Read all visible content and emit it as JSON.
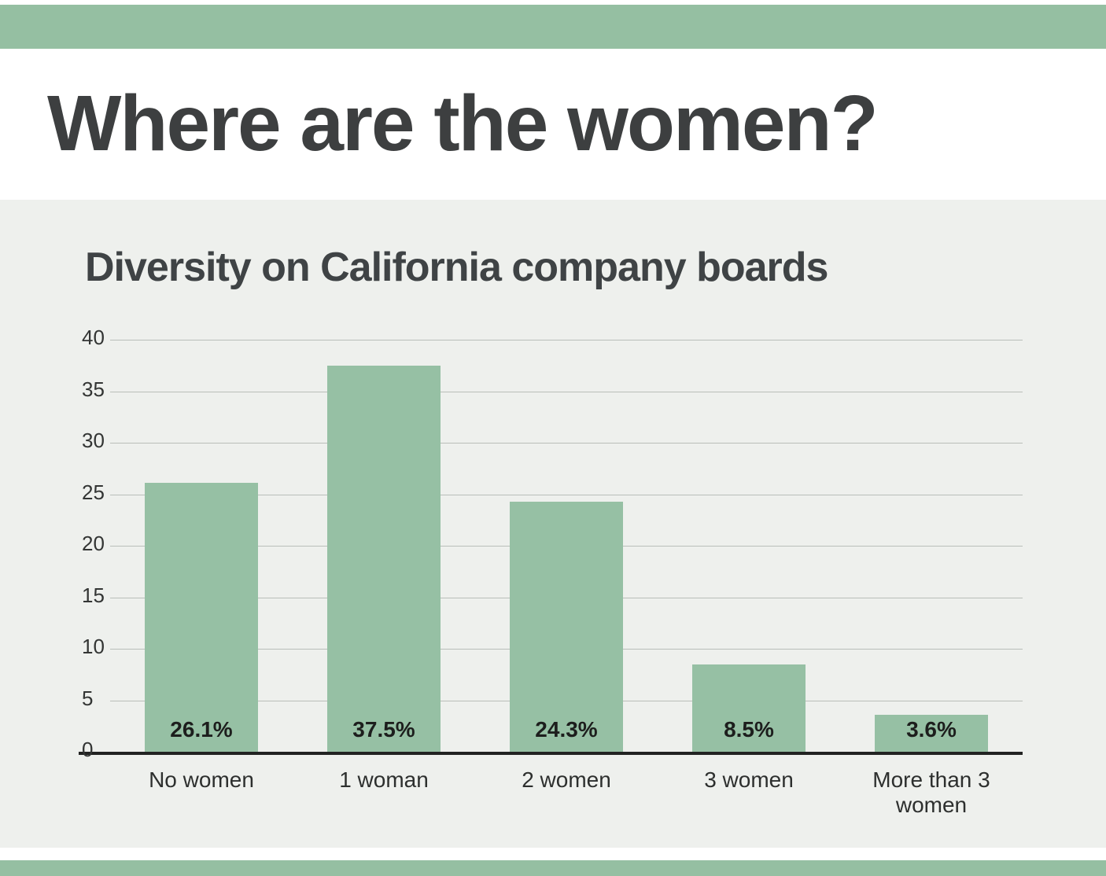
{
  "header": {
    "title": "Where are the women?"
  },
  "colors": {
    "banner_green": "#95bfa2",
    "bar_green": "#96c0a4",
    "section_background": "#eef0ed",
    "title_text": "#3d3f40"
  },
  "chart_data": {
    "type": "bar",
    "title": "Diversity on California company boards",
    "categories": [
      "No women",
      "1 woman",
      "2 women",
      "3 women",
      "More than 3 women"
    ],
    "values": [
      26.1,
      37.5,
      24.3,
      8.5,
      3.6
    ],
    "value_labels": [
      "26.1%",
      "37.5%",
      "24.3%",
      "8.5%",
      "3.6%"
    ],
    "xlabel": "",
    "ylabel": "",
    "ylim": [
      0,
      40
    ],
    "yticks": [
      0,
      5,
      10,
      15,
      20,
      25,
      30,
      35,
      40
    ],
    "grid": true,
    "legend": "none",
    "bar_color": "#96c0a4"
  }
}
